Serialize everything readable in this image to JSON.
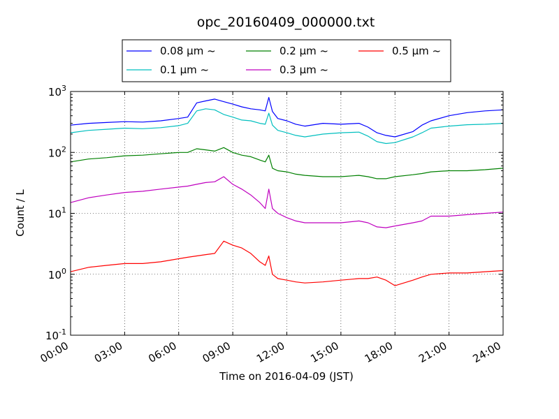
{
  "chart_data": {
    "type": "line",
    "title": "opc_20160409_000000.txt",
    "xlabel": "Time on 2016-04-09 (JST)",
    "ylabel": "Count / L",
    "x_unit": "hours",
    "xlim": [
      0,
      24
    ],
    "ylim": [
      0.1,
      1000
    ],
    "yscale": "log",
    "grid": true,
    "legend_position": "top-center",
    "x_ticks": [
      {
        "value": 0,
        "label": "00:00"
      },
      {
        "value": 3,
        "label": "03:00"
      },
      {
        "value": 6,
        "label": "06:00"
      },
      {
        "value": 9,
        "label": "09:00"
      },
      {
        "value": 12,
        "label": "12:00"
      },
      {
        "value": 15,
        "label": "15:00"
      },
      {
        "value": 18,
        "label": "18:00"
      },
      {
        "value": 21,
        "label": "21:00"
      },
      {
        "value": 24,
        "label": "24:00"
      }
    ],
    "y_ticks": [
      {
        "value": 0.1,
        "base": "10",
        "exp": "-1"
      },
      {
        "value": 1,
        "base": "10",
        "exp": "0"
      },
      {
        "value": 10,
        "base": "10",
        "exp": "1"
      },
      {
        "value": 100,
        "base": "10",
        "exp": "2"
      },
      {
        "value": 1000,
        "base": "10",
        "exp": "3"
      }
    ],
    "x": [
      0,
      1,
      2,
      3,
      4,
      5,
      6,
      6.5,
      7,
      7.5,
      8,
      8.5,
      9,
      9.5,
      10,
      10.5,
      10.8,
      11,
      11.2,
      11.5,
      12,
      12.5,
      13,
      14,
      15,
      16,
      16.5,
      17,
      17.5,
      18,
      19,
      19.5,
      20,
      21,
      22,
      23,
      24
    ],
    "series": [
      {
        "name": "0.08 μm ~",
        "color": "#0000ff",
        "values": [
          280,
          300,
          310,
          320,
          315,
          330,
          360,
          380,
          650,
          700,
          750,
          680,
          620,
          560,
          520,
          500,
          480,
          800,
          470,
          360,
          330,
          290,
          270,
          300,
          290,
          300,
          260,
          210,
          190,
          180,
          220,
          280,
          330,
          400,
          450,
          480,
          500
        ]
      },
      {
        "name": "0.1 μm ~",
        "color": "#00bfbf",
        "values": [
          210,
          230,
          240,
          250,
          245,
          255,
          275,
          300,
          480,
          520,
          500,
          420,
          380,
          340,
          330,
          300,
          290,
          440,
          280,
          230,
          210,
          190,
          180,
          200,
          210,
          215,
          185,
          150,
          140,
          145,
          180,
          210,
          250,
          270,
          285,
          290,
          300
        ]
      },
      {
        "name": "0.2 μm ~",
        "color": "#008000",
        "values": [
          70,
          78,
          82,
          88,
          90,
          95,
          100,
          100,
          115,
          110,
          105,
          120,
          100,
          90,
          85,
          75,
          70,
          90,
          55,
          50,
          48,
          44,
          42,
          40,
          40,
          42,
          40,
          37,
          37,
          40,
          43,
          45,
          48,
          50,
          50,
          52,
          55
        ]
      },
      {
        "name": "0.3 μm ~",
        "color": "#bf00bf",
        "values": [
          15,
          18,
          20,
          22,
          23,
          25,
          27,
          28,
          30,
          32,
          33,
          40,
          30,
          25,
          20,
          15,
          12,
          25,
          12,
          10,
          8.5,
          7.5,
          7,
          7,
          7,
          7.5,
          7,
          6,
          5.8,
          6.2,
          7,
          7.5,
          9,
          9,
          9.5,
          10,
          10.5
        ]
      },
      {
        "name": "0.5 μm ~",
        "color": "#ff0000",
        "values": [
          1.1,
          1.3,
          1.4,
          1.5,
          1.5,
          1.6,
          1.8,
          1.9,
          2.0,
          2.1,
          2.2,
          3.5,
          3.0,
          2.7,
          2.2,
          1.6,
          1.4,
          2.0,
          1.0,
          0.85,
          0.8,
          0.75,
          0.72,
          0.75,
          0.8,
          0.85,
          0.85,
          0.9,
          0.8,
          0.65,
          0.8,
          0.9,
          1.0,
          1.05,
          1.05,
          1.1,
          1.15
        ]
      }
    ]
  }
}
